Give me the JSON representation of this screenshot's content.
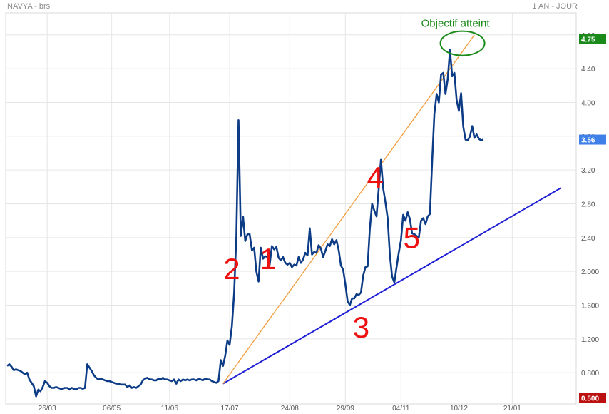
{
  "header": {
    "left": "NAVYA - brs",
    "right": "1 AN - JOUR"
  },
  "colors": {
    "price_line": "#0d3c87",
    "grid": "#e6e6e6",
    "support_line": "#1f1fd6",
    "resistance_line": "#f39c3c",
    "labels": "#ee1111",
    "target": "#1a8a1a",
    "badge_high": "#1a8a1a",
    "badge_last": "#3f7fe8",
    "badge_low": "#bb1111"
  },
  "chart_data": {
    "type": "line",
    "ylim": [
      0.43,
      5.06
    ],
    "y_ticks": [
      "0.800",
      "1.200",
      "1.600",
      "2.000",
      "2.40",
      "2.80",
      "3.20",
      "3.60",
      "4.00",
      "4.40",
      "4.80"
    ],
    "x_ticks": [
      "26/03",
      "06/05",
      "11/06",
      "17/07",
      "24/08",
      "29/09",
      "04/11",
      "10/12",
      "21/01"
    ],
    "x_tick_index": [
      18,
      47,
      73,
      100,
      127,
      152,
      177,
      203,
      227
    ],
    "badges": [
      {
        "name": "high",
        "text": "4.75",
        "value": 4.75
      },
      {
        "name": "last",
        "text": "3.56",
        "value": 3.56
      },
      {
        "name": "low",
        "text": "0.500",
        "value": 0.5
      }
    ],
    "series": [
      {
        "values": [
          0.88,
          0.9,
          0.87,
          0.83,
          0.84,
          0.83,
          0.82,
          0.8,
          0.78,
          0.8,
          0.72,
          0.68,
          0.64,
          0.52,
          0.6,
          0.58,
          0.63,
          0.7,
          0.68,
          0.64,
          0.62,
          0.62,
          0.63,
          0.62,
          0.61,
          0.61,
          0.62,
          0.62,
          0.6,
          0.62,
          0.61,
          0.6,
          0.62,
          0.62,
          0.61,
          0.62,
          0.9,
          0.86,
          0.82,
          0.77,
          0.74,
          0.72,
          0.73,
          0.72,
          0.71,
          0.7,
          0.7,
          0.69,
          0.68,
          0.67,
          0.67,
          0.66,
          0.66,
          0.66,
          0.63,
          0.65,
          0.62,
          0.63,
          0.62,
          0.64,
          0.66,
          0.71,
          0.73,
          0.74,
          0.72,
          0.72,
          0.71,
          0.71,
          0.73,
          0.72,
          0.74,
          0.72,
          0.72,
          0.71,
          0.7,
          0.72,
          0.67,
          0.72,
          0.7,
          0.72,
          0.71,
          0.72,
          0.71,
          0.72,
          0.72,
          0.71,
          0.73,
          0.72,
          0.71,
          0.73,
          0.72,
          0.72,
          0.7,
          0.69,
          0.68,
          0.7,
          0.95,
          0.88,
          1.0,
          1.18,
          1.13,
          1.35,
          1.74,
          2.4,
          3.79,
          2.42,
          2.65,
          2.36,
          2.44,
          2.44,
          2.25,
          2.28,
          2.0,
          1.88,
          2.28,
          2.15,
          2.18,
          2.17,
          2.08,
          2.3,
          2.26,
          2.29,
          2.16,
          2.13,
          2.17,
          2.1,
          2.08,
          2.1,
          2.05,
          2.08,
          2.07,
          2.17,
          2.1,
          2.14,
          2.22,
          2.19,
          2.51,
          2.2,
          2.23,
          2.22,
          2.31,
          2.27,
          2.17,
          2.24,
          2.32,
          2.3,
          2.38,
          2.32,
          2.37,
          2.25,
          2.07,
          2.02,
          1.85,
          1.65,
          1.6,
          1.68,
          1.68,
          1.73,
          1.72,
          1.75,
          1.95,
          2.05,
          2.06,
          2.5,
          2.8,
          2.72,
          2.65,
          2.98,
          3.32,
          2.98,
          2.82,
          2.63,
          2.2,
          1.94,
          1.87,
          2.05,
          2.22,
          2.37,
          2.67,
          2.6,
          2.7,
          2.62,
          2.45,
          2.44,
          2.42,
          2.4,
          2.6,
          2.63,
          2.56,
          2.65,
          2.68,
          3.3,
          3.86,
          4.1,
          4.0,
          4.33,
          4.35,
          4.1,
          4.28,
          4.62,
          4.31,
          4.35,
          4.03,
          3.9,
          4.11,
          3.71,
          3.56,
          3.55,
          3.6,
          3.72,
          3.58,
          3.62,
          3.57,
          3.55,
          3.56
        ]
      }
    ],
    "annotations": [
      {
        "text": "1",
        "index": 111
      },
      {
        "text": "2",
        "index": 102
      },
      {
        "text": "3",
        "index": 156
      },
      {
        "text": "4",
        "index": 170
      },
      {
        "text": "5",
        "index": 180
      },
      {
        "text": "Objectif atteint",
        "index": 204,
        "value": 4.7
      }
    ],
    "trendlines": [
      {
        "name": "support",
        "from": {
          "index": 97,
          "value": 0.67
        },
        "to": {
          "index": 249,
          "value": 2.99
        }
      },
      {
        "name": "resistance",
        "from": {
          "index": 97,
          "value": 0.67
        },
        "to": {
          "index": 210,
          "value": 4.8
        }
      }
    ],
    "grid": true
  }
}
